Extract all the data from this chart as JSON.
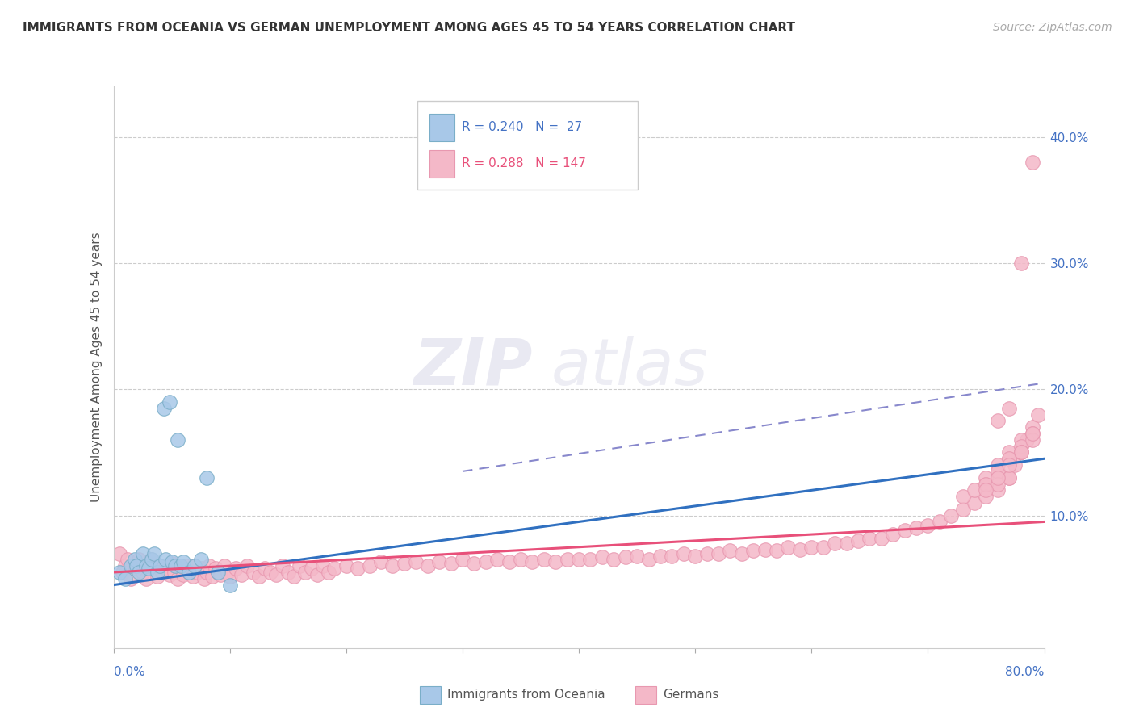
{
  "title": "IMMIGRANTS FROM OCEANIA VS GERMAN UNEMPLOYMENT AMONG AGES 45 TO 54 YEARS CORRELATION CHART",
  "source": "Source: ZipAtlas.com",
  "ylabel": "Unemployment Among Ages 45 to 54 years",
  "xlim": [
    0.0,
    0.8
  ],
  "ylim": [
    -0.005,
    0.44
  ],
  "yticks": [
    0.1,
    0.2,
    0.3,
    0.4
  ],
  "ytick_labels": [
    "10.0%",
    "20.0%",
    "30.0%",
    "40.0%"
  ],
  "legend_r_blue": "R = 0.240",
  "legend_n_blue": "N =  27",
  "legend_r_pink": "R = 0.288",
  "legend_n_pink": "N = 147",
  "color_blue_fill": "#a8c8e8",
  "color_pink_fill": "#f4b8c8",
  "color_blue_edge": "#7aaec8",
  "color_pink_edge": "#e898b0",
  "color_blue_line": "#3070c0",
  "color_pink_line": "#e8507a",
  "color_dashed_line": "#8888cc",
  "color_grid": "#cccccc",
  "watermark_zip": "ZIP",
  "watermark_atlas": "atlas",
  "blue_x": [
    0.005,
    0.01,
    0.015,
    0.018,
    0.02,
    0.022,
    0.025,
    0.028,
    0.03,
    0.033,
    0.035,
    0.038,
    0.04,
    0.043,
    0.045,
    0.048,
    0.05,
    0.053,
    0.055,
    0.058,
    0.06,
    0.065,
    0.07,
    0.075,
    0.08,
    0.09,
    0.1
  ],
  "blue_y": [
    0.055,
    0.05,
    0.06,
    0.065,
    0.06,
    0.055,
    0.07,
    0.06,
    0.058,
    0.065,
    0.07,
    0.055,
    0.06,
    0.185,
    0.065,
    0.19,
    0.063,
    0.06,
    0.16,
    0.06,
    0.063,
    0.055,
    0.06,
    0.065,
    0.13,
    0.055,
    0.045
  ],
  "pink_x": [
    0.005,
    0.008,
    0.01,
    0.012,
    0.015,
    0.018,
    0.02,
    0.022,
    0.025,
    0.028,
    0.03,
    0.032,
    0.035,
    0.038,
    0.04,
    0.042,
    0.045,
    0.048,
    0.05,
    0.052,
    0.055,
    0.058,
    0.06,
    0.062,
    0.065,
    0.068,
    0.07,
    0.072,
    0.075,
    0.078,
    0.08,
    0.082,
    0.085,
    0.088,
    0.09,
    0.092,
    0.095,
    0.098,
    0.1,
    0.105,
    0.11,
    0.115,
    0.12,
    0.125,
    0.13,
    0.135,
    0.14,
    0.145,
    0.15,
    0.155,
    0.16,
    0.165,
    0.17,
    0.175,
    0.18,
    0.185,
    0.19,
    0.2,
    0.21,
    0.22,
    0.23,
    0.24,
    0.25,
    0.26,
    0.27,
    0.28,
    0.29,
    0.3,
    0.31,
    0.32,
    0.33,
    0.34,
    0.35,
    0.36,
    0.37,
    0.38,
    0.39,
    0.4,
    0.41,
    0.42,
    0.43,
    0.44,
    0.45,
    0.46,
    0.47,
    0.48,
    0.49,
    0.5,
    0.51,
    0.52,
    0.53,
    0.54,
    0.55,
    0.56,
    0.57,
    0.58,
    0.59,
    0.6,
    0.61,
    0.62,
    0.63,
    0.64,
    0.65,
    0.66,
    0.67,
    0.68,
    0.69,
    0.7,
    0.71,
    0.72,
    0.73,
    0.74,
    0.75,
    0.76,
    0.77,
    0.775,
    0.78,
    0.785,
    0.79,
    0.795,
    0.76,
    0.77,
    0.75,
    0.73,
    0.74,
    0.75,
    0.76,
    0.77,
    0.78,
    0.79,
    0.75,
    0.76,
    0.77,
    0.78,
    0.79,
    0.76,
    0.77,
    0.78,
    0.79,
    0.75,
    0.76,
    0.77,
    0.78,
    0.79,
    0.76,
    0.77,
    0.78
  ],
  "pink_y": [
    0.07,
    0.055,
    0.06,
    0.065,
    0.05,
    0.06,
    0.058,
    0.065,
    0.055,
    0.05,
    0.06,
    0.065,
    0.058,
    0.052,
    0.06,
    0.055,
    0.058,
    0.053,
    0.062,
    0.055,
    0.05,
    0.058,
    0.053,
    0.06,
    0.055,
    0.052,
    0.06,
    0.055,
    0.058,
    0.05,
    0.055,
    0.06,
    0.052,
    0.058,
    0.055,
    0.053,
    0.06,
    0.055,
    0.052,
    0.058,
    0.053,
    0.06,
    0.055,
    0.052,
    0.058,
    0.055,
    0.053,
    0.06,
    0.055,
    0.052,
    0.06,
    0.055,
    0.058,
    0.053,
    0.06,
    0.055,
    0.058,
    0.06,
    0.058,
    0.06,
    0.063,
    0.06,
    0.062,
    0.063,
    0.06,
    0.063,
    0.062,
    0.065,
    0.062,
    0.063,
    0.065,
    0.063,
    0.065,
    0.063,
    0.065,
    0.063,
    0.065,
    0.065,
    0.065,
    0.067,
    0.065,
    0.067,
    0.068,
    0.065,
    0.068,
    0.068,
    0.07,
    0.068,
    0.07,
    0.07,
    0.072,
    0.07,
    0.072,
    0.073,
    0.072,
    0.075,
    0.073,
    0.075,
    0.075,
    0.078,
    0.078,
    0.08,
    0.082,
    0.082,
    0.085,
    0.088,
    0.09,
    0.092,
    0.095,
    0.1,
    0.105,
    0.11,
    0.115,
    0.12,
    0.13,
    0.14,
    0.15,
    0.16,
    0.17,
    0.18,
    0.135,
    0.145,
    0.125,
    0.115,
    0.12,
    0.13,
    0.14,
    0.15,
    0.16,
    0.38,
    0.125,
    0.135,
    0.145,
    0.155,
    0.165,
    0.125,
    0.13,
    0.15,
    0.16,
    0.12,
    0.13,
    0.14,
    0.15,
    0.165,
    0.175,
    0.185,
    0.3
  ],
  "blue_line_x": [
    0.0,
    0.8
  ],
  "blue_line_y": [
    0.045,
    0.145
  ],
  "pink_line_x": [
    0.0,
    0.8
  ],
  "pink_line_y": [
    0.055,
    0.095
  ],
  "dash_line_x": [
    0.3,
    0.8
  ],
  "dash_line_y": [
    0.135,
    0.205
  ]
}
